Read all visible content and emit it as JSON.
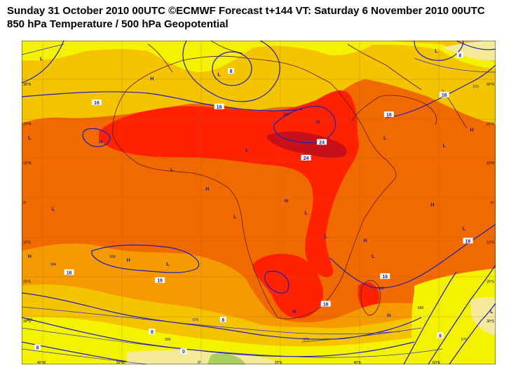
{
  "title_line1": "Sunday 31 October 2010 00UTC ©ECMWF Forecast t+144 VT: Saturday 6 November 2010 00UTC",
  "title_line2": "850 hPa Temperature / 500 hPa Geopotential",
  "colors": {
    "band_lt8": "#f5ea9a",
    "band_yellow": "#f5f200",
    "band_gold": "#f5c400",
    "band_orange": "#f59a00",
    "band_darkorange": "#f06a00",
    "band_red": "#ff2200",
    "band_darkred": "#c8101a",
    "contour_blue": "#2020b0",
    "coast": "#5a1a1a"
  },
  "lon_ticks": [
    "40°W",
    "20°W",
    "0°",
    "20°E",
    "40°E",
    "60°E"
  ],
  "lat_ticks": [
    "30°N",
    "20°N",
    "10°N",
    "0°",
    "10°S",
    "20°S",
    "30°S"
  ],
  "pressure_markers": [
    {
      "label": "L",
      "lon": -40,
      "lat": 36
    },
    {
      "label": "L",
      "lon": 5,
      "lat": 32
    },
    {
      "label": "H",
      "lon": -12,
      "lat": 31
    },
    {
      "label": "L",
      "lon": 60,
      "lat": 38
    },
    {
      "label": "H",
      "lon": -25,
      "lat": 15
    },
    {
      "label": "L",
      "lon": -43,
      "lat": 16
    },
    {
      "label": "H",
      "lon": 30,
      "lat": 20
    },
    {
      "label": "L",
      "lon": 47,
      "lat": 16
    },
    {
      "label": "H",
      "lon": 69,
      "lat": 18
    },
    {
      "label": "L",
      "lon": 62,
      "lat": 14
    },
    {
      "label": "L",
      "lon": -7,
      "lat": 8
    },
    {
      "label": "L",
      "lon": 12,
      "lat": 13
    },
    {
      "label": "H",
      "lon": 2,
      "lat": 3
    },
    {
      "label": "H",
      "lon": 22,
      "lat": 0
    },
    {
      "label": "H",
      "lon": 59,
      "lat": -1
    },
    {
      "label": "L",
      "lon": -37,
      "lat": -2
    },
    {
      "label": "L",
      "lon": 9,
      "lat": -4
    },
    {
      "label": "L",
      "lon": 27,
      "lat": -3
    },
    {
      "label": "H",
      "lon": -43,
      "lat": -14
    },
    {
      "label": "H",
      "lon": -18,
      "lat": -15
    },
    {
      "label": "L",
      "lon": -8,
      "lat": -16
    },
    {
      "label": "L",
      "lon": 32,
      "lat": -9
    },
    {
      "label": "H",
      "lon": 42,
      "lat": -10
    },
    {
      "label": "L",
      "lon": 67,
      "lat": -7
    },
    {
      "label": "L",
      "lon": 44,
      "lat": -14
    },
    {
      "label": "H",
      "lon": 24,
      "lat": -28
    },
    {
      "label": "H",
      "lon": 48,
      "lat": -29
    },
    {
      "label": "L",
      "lon": 74,
      "lat": -28
    }
  ],
  "contour_labels": [
    {
      "text": "8",
      "lon": 8,
      "lat": 33
    },
    {
      "text": "16",
      "lon": -26,
      "lat": 25
    },
    {
      "text": "16",
      "lon": 5,
      "lat": 24
    },
    {
      "text": "16",
      "lon": 62,
      "lat": 27
    },
    {
      "text": "16",
      "lon": 48,
      "lat": 22
    },
    {
      "text": "24",
      "lon": 31,
      "lat": 15
    },
    {
      "text": "24",
      "lon": 27,
      "lat": 11
    },
    {
      "text": "16",
      "lon": -33,
      "lat": -18
    },
    {
      "text": "16",
      "lon": -10,
      "lat": -20
    },
    {
      "text": "16",
      "lon": 68,
      "lat": -10
    },
    {
      "text": "16",
      "lon": 47,
      "lat": -19
    },
    {
      "text": "16",
      "lon": 32,
      "lat": -26
    },
    {
      "text": "8",
      "lon": -12,
      "lat": -33
    },
    {
      "text": "8",
      "lon": 6,
      "lat": -30
    },
    {
      "text": "8",
      "lon": 61,
      "lat": -34
    },
    {
      "text": "8",
      "lon": 66,
      "lat": 37
    },
    {
      "text": "0",
      "lon": -4,
      "lat": -38
    },
    {
      "text": "8",
      "lon": -41,
      "lat": -37
    }
  ],
  "geopotential_labels": [
    {
      "text": "576",
      "lon": 70,
      "lat": 29
    },
    {
      "text": "588",
      "lon": 22,
      "lat": 22
    },
    {
      "text": "588",
      "lon": -22,
      "lat": -14
    },
    {
      "text": "588",
      "lon": 46,
      "lat": -22
    },
    {
      "text": "584",
      "lon": -37,
      "lat": -16
    },
    {
      "text": "576",
      "lon": -1,
      "lat": -30
    },
    {
      "text": "584",
      "lon": -8,
      "lat": -35
    },
    {
      "text": "576",
      "lon": 27,
      "lat": -35
    },
    {
      "text": "576",
      "lon": -43,
      "lat": -30
    },
    {
      "text": "588",
      "lon": 56,
      "lat": -27
    },
    {
      "text": "576",
      "lon": 67,
      "lat": -35
    }
  ]
}
